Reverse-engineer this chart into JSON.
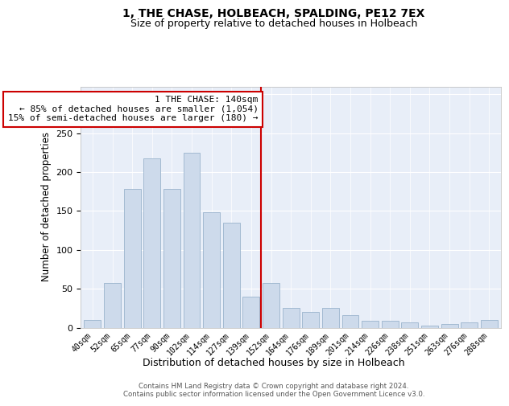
{
  "title": "1, THE CHASE, HOLBEACH, SPALDING, PE12 7EX",
  "subtitle": "Size of property relative to detached houses in Holbeach",
  "xlabel": "Distribution of detached houses by size in Holbeach",
  "ylabel": "Number of detached properties",
  "categories": [
    "40sqm",
    "52sqm",
    "65sqm",
    "77sqm",
    "90sqm",
    "102sqm",
    "114sqm",
    "127sqm",
    "139sqm",
    "152sqm",
    "164sqm",
    "176sqm",
    "189sqm",
    "201sqm",
    "214sqm",
    "226sqm",
    "238sqm",
    "251sqm",
    "263sqm",
    "276sqm",
    "288sqm"
  ],
  "values": [
    10,
    57,
    178,
    218,
    178,
    225,
    148,
    135,
    40,
    57,
    25,
    20,
    25,
    16,
    9,
    9,
    7,
    3,
    5,
    7,
    10
  ],
  "bar_color": "#cddaeb",
  "bar_edge_color": "#9ab4cc",
  "highlight_index": 8,
  "highlight_color": "#cc0000",
  "annotation_text": "1 THE CHASE: 140sqm\n← 85% of detached houses are smaller (1,054)\n15% of semi-detached houses are larger (180) →",
  "annotation_box_color": "#ffffff",
  "annotation_box_edge_color": "#cc0000",
  "ylim": [
    0,
    310
  ],
  "yticks": [
    0,
    50,
    100,
    150,
    200,
    250,
    300
  ],
  "background_color": "#e8eef8",
  "footer_text": "Contains HM Land Registry data © Crown copyright and database right 2024.\nContains public sector information licensed under the Open Government Licence v3.0.",
  "title_fontsize": 10,
  "subtitle_fontsize": 9,
  "annotation_fontsize": 8,
  "red_line_x": 8.5
}
